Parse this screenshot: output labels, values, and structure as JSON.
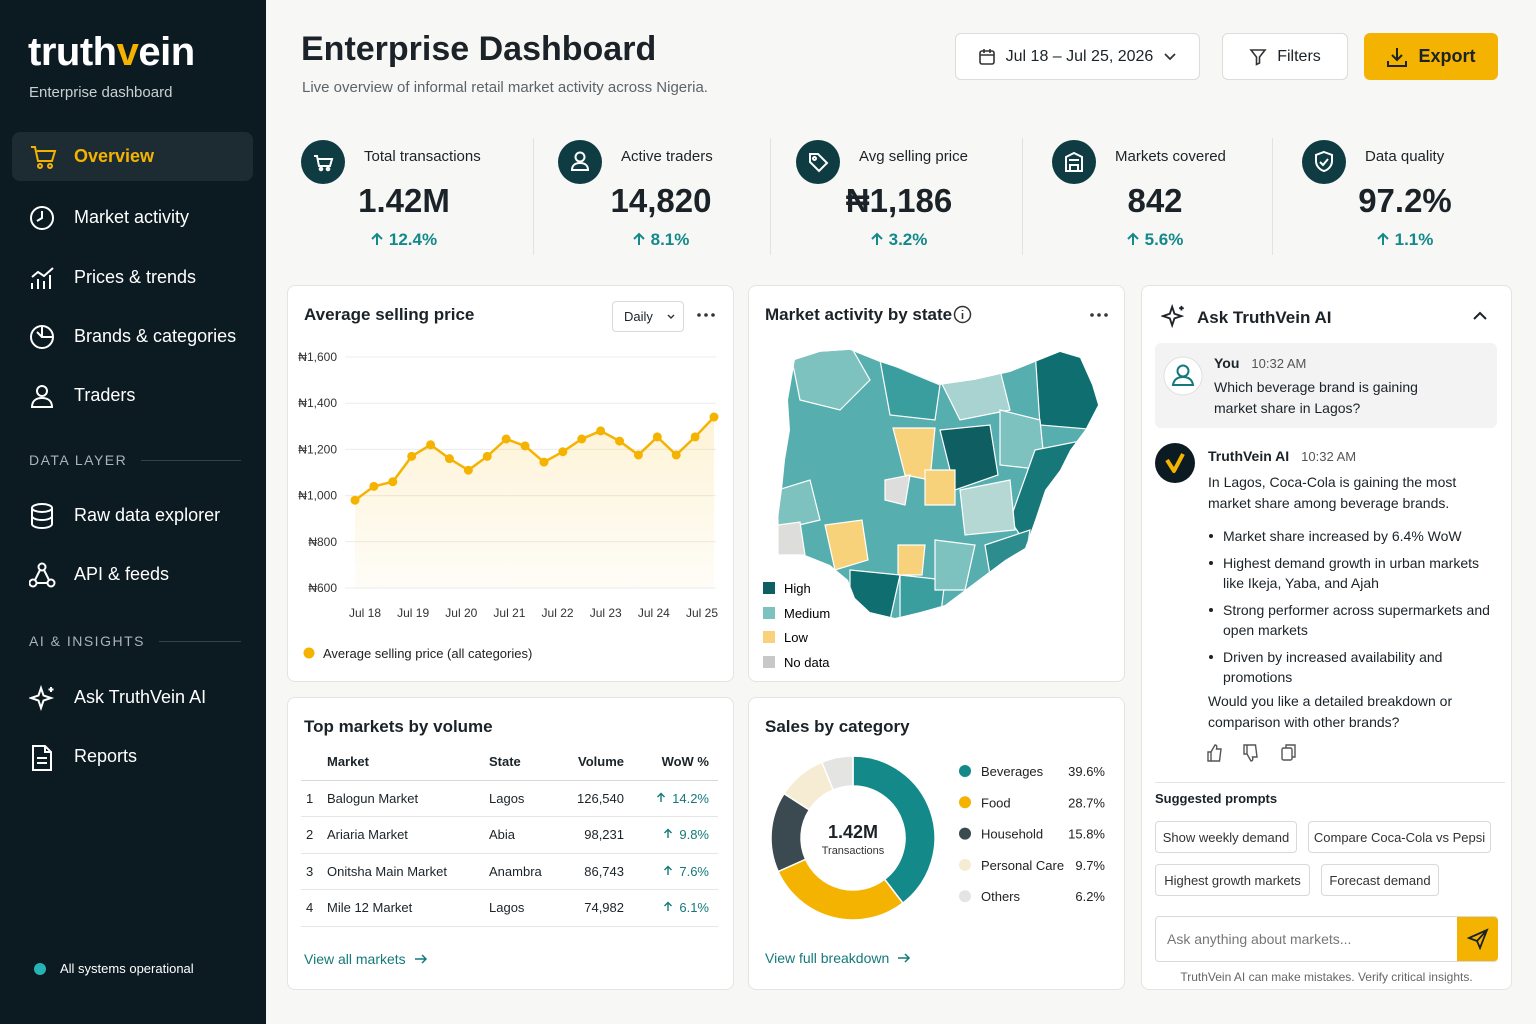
{
  "sidebar": {
    "brand": [
      "truth",
      "v",
      "ein"
    ],
    "subtitle": "Enterprise dashboard",
    "nav": [
      "Overview",
      "Market activity",
      "Prices & trends",
      "Brands & categories",
      "Traders"
    ],
    "sections": [
      {
        "title": "DATA LAYER",
        "items": [
          "Raw data explorer",
          "API & feeds"
        ]
      },
      {
        "title": "AI & INSIGHTS",
        "items": [
          "Ask TruthVein AI",
          "Reports"
        ]
      }
    ],
    "status": "All systems operational"
  },
  "header": {
    "title": "Enterprise Dashboard",
    "subtitle": "Live overview of informal retail market activity across Nigeria.",
    "date_range": "Jul 18 – Jul 25, 2026",
    "filters": "Filters",
    "export": "Export"
  },
  "kpis": [
    {
      "label": "Total transactions",
      "value": "1.42M",
      "change": "12.4%"
    },
    {
      "label": "Active traders",
      "value": "14,820",
      "change": "8.1%"
    },
    {
      "label": "Avg selling price",
      "value": "₦1,186",
      "change": "3.2%"
    },
    {
      "label": "Markets covered",
      "value": "842",
      "change": "5.6%"
    },
    {
      "label": "Data quality",
      "value": "97.2%",
      "change": "1.1%"
    }
  ],
  "chart_data": [
    {
      "type": "line",
      "title": "Average selling price",
      "period": "Daily",
      "x_labels": [
        "Jul 18",
        "Jul 19",
        "Jul 20",
        "Jul 21",
        "Jul 22",
        "Jul 23",
        "Jul 24",
        "Jul 25"
      ],
      "series": [
        {
          "name": "Average selling price (all categories)",
          "color": "#f5b301",
          "values": [
            980,
            1040,
            1060,
            1170,
            1220,
            1160,
            1110,
            1170,
            1245,
            1215,
            1145,
            1190,
            1245,
            1280,
            1236,
            1176,
            1254,
            1176,
            1254,
            1340
          ]
        }
      ],
      "ylim": [
        600,
        1600
      ],
      "yticks": [
        {
          "value": 600,
          "label": "₦600"
        },
        {
          "value": 800,
          "label": "₦800"
        },
        {
          "value": 1000,
          "label": "₦1,000"
        },
        {
          "value": 1200,
          "label": "₦1,200"
        },
        {
          "value": 1400,
          "label": "₦1,400"
        },
        {
          "value": 1600,
          "label": "₦1,600"
        }
      ],
      "grid": true
    },
    {
      "type": "pie",
      "title": "Sales by category",
      "center_value": "1.42M",
      "center_label": "Transactions",
      "categories": [
        "Beverages",
        "Food",
        "Household",
        "Personal Care",
        "Others"
      ],
      "values": [
        39.6,
        28.7,
        15.8,
        9.7,
        6.2
      ],
      "value_labels": [
        "39.6%",
        "28.7%",
        "15.8%",
        "9.7%",
        "6.2%"
      ],
      "colors": [
        "#14898a",
        "#f5b301",
        "#3b4951",
        "#f6ecd3",
        "#e4e4e2"
      ],
      "link": "View full breakdown"
    }
  ],
  "map": {
    "title": "Market activity by state",
    "legend": [
      "High",
      "Medium",
      "Low",
      "No data"
    ]
  },
  "table": {
    "title": "Top markets by volume",
    "columns": [
      "Market",
      "State",
      "Volume",
      "WoW %"
    ],
    "rows": [
      [
        "1",
        "Balogun Market",
        "Lagos",
        "126,540",
        "14.2%"
      ],
      [
        "2",
        "Ariaria Market",
        "Abia",
        "98,231",
        "9.8%"
      ],
      [
        "3",
        "Onitsha Main Market",
        "Anambra",
        "86,743",
        "7.6%"
      ],
      [
        "4",
        "Mile 12 Market",
        "Lagos",
        "74,982",
        "6.1%"
      ]
    ],
    "link": "View all markets"
  },
  "assistant": {
    "title": "Ask TruthVein AI",
    "user": {
      "author": "You",
      "time": "10:32 AM",
      "text": "Which beverage brand is gaining market share in Lagos?"
    },
    "reply": {
      "author": "TruthVein AI",
      "time": "10:32 AM",
      "text": "In Lagos, Coca-Cola is gaining the most market share among beverage brands.",
      "bullets": [
        "Market share increased by 6.4% WoW",
        "Highest demand growth in urban markets like Ikeja, Yaba, and Ajah",
        "Strong performer across supermarkets and open markets",
        "Driven by increased availability and promotions"
      ],
      "followup": "Would you like a detailed breakdown or comparison with other brands?"
    },
    "prompts_title": "Suggested prompts",
    "prompts": [
      "Show weekly demand",
      "Compare Coca-Cola vs Pepsi",
      "Highest growth markets",
      "Forecast demand"
    ],
    "placeholder": "Ask anything about markets...",
    "disclaimer": "TruthVein AI can make mistakes. Verify critical insights."
  }
}
